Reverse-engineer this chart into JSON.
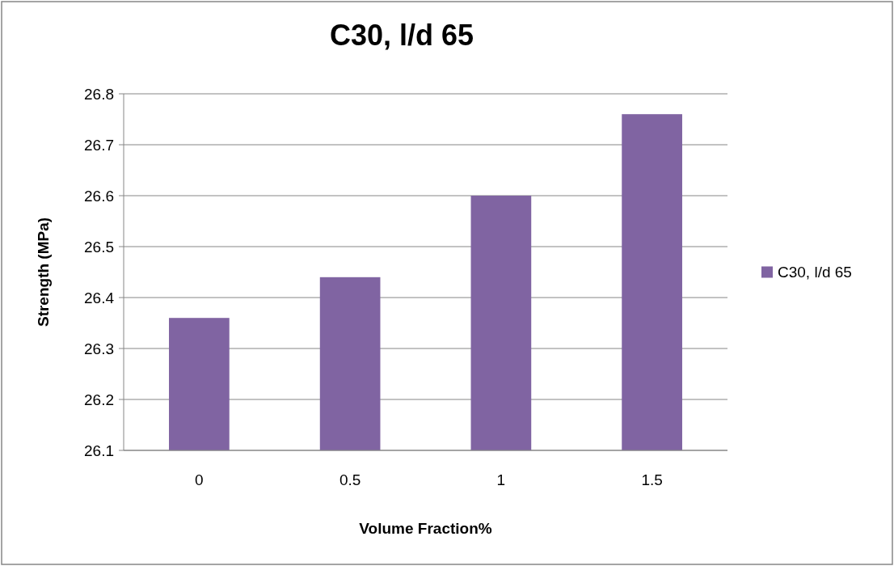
{
  "chart_data": {
    "type": "bar",
    "title": "C30, l/d 65",
    "xlabel": "Volume Fraction%",
    "ylabel": "Strength (MPa)",
    "categories": [
      "0",
      "0.5",
      "1",
      "1.5"
    ],
    "series": [
      {
        "name": "C30, l/d 65",
        "color": "#8064a2",
        "values": [
          26.36,
          26.44,
          26.6,
          26.76
        ]
      }
    ],
    "ylim": [
      26.1,
      26.8
    ],
    "yticks": [
      26.1,
      26.2,
      26.3,
      26.4,
      26.5,
      26.6,
      26.7,
      26.8
    ],
    "grid": "y",
    "legend": "right"
  }
}
